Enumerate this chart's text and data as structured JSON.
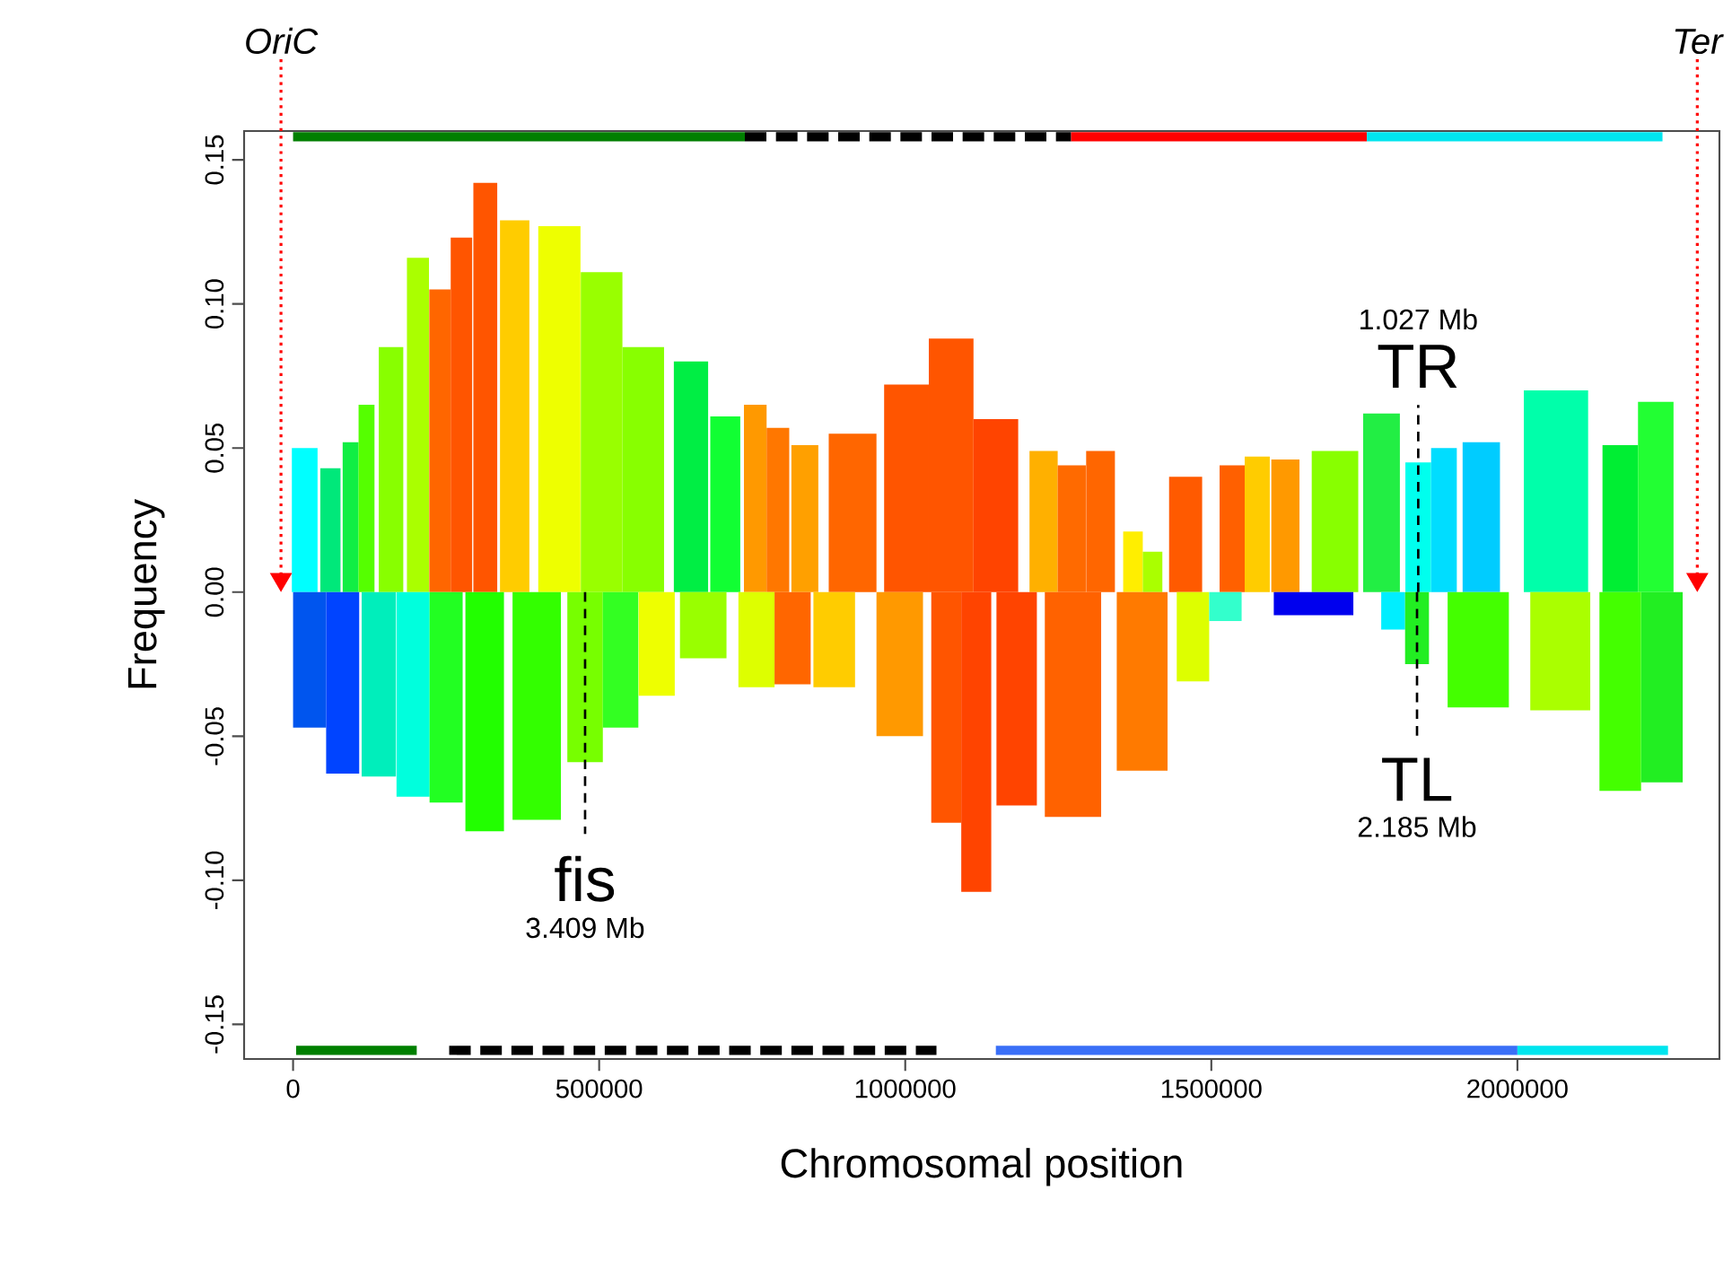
{
  "chart_data": {
    "type": "bar",
    "xlabel": "Chromosomal position",
    "ylabel": "Frequency",
    "xlim": [
      -80000,
      2330000
    ],
    "ylim": [
      -0.162,
      0.16
    ],
    "xticks": [
      0,
      500000,
      1000000,
      1500000,
      2000000
    ],
    "yticks": [
      -0.15,
      {
        "value": -0.1,
        "label": "-0.10"
      },
      -0.05,
      {
        "value": 0,
        "label": "0.00"
      },
      0.05,
      {
        "value": 0.1,
        "label": "0.10"
      },
      0.15
    ],
    "series": [
      {
        "x": [
          19000,
          61000,
          94000,
          120000,
          160000,
          204000,
          240000,
          275000,
          314000,
          362000,
          435000,
          504000,
          572000,
          650000,
          706000,
          755000,
          792000,
          836000,
          914000,
          1002000,
          1075000,
          1148000,
          1226000,
          1272000,
          1319000,
          1372000,
          1404000,
          1458000,
          1534000,
          1575000,
          1621000,
          1702000,
          1778000,
          1838000,
          1880000,
          1941000,
          2063000,
          2168000,
          2226000
        ],
        "values": [
          0.05,
          0.043,
          0.052,
          0.065,
          0.085,
          0.116,
          0.105,
          0.123,
          0.142,
          0.129,
          0.127,
          0.111,
          0.085,
          0.08,
          0.061,
          0.065,
          0.057,
          0.051,
          0.055,
          0.072,
          0.088,
          0.06,
          0.049,
          0.044,
          0.049,
          0.021,
          0.014,
          0.04,
          0.044,
          0.047,
          0.046,
          0.049,
          0.062,
          0.045,
          0.05,
          0.052,
          0.07,
          0.051,
          0.066
        ],
        "colors": [
          "#00ffff",
          "#00e87a",
          "#11ee44",
          "#55ff00",
          "#88ff00",
          "#aaff00",
          "#ff6600",
          "#ff5500",
          "#ff5500",
          "#ffcc00",
          "#eeff00",
          "#99ff00",
          "#88ff00",
          "#00ee44",
          "#11ff33",
          "#ff9900",
          "#ff7700",
          "#ffa000",
          "#ff6600",
          "#ff5500",
          "#ff5500",
          "#ff4400",
          "#ffb000",
          "#ff6a00",
          "#ff6600",
          "#ffee00",
          "#aaff00",
          "#ff5a00",
          "#ff6000",
          "#ffcc00",
          "#ff9900",
          "#88ff00",
          "#22ee44",
          "#00ffee",
          "#00ddff",
          "#00ccff",
          "#00ffaa",
          "#00ee33",
          "#22ff33"
        ]
      },
      {
        "x": [
          27000,
          81000,
          140000,
          196000,
          250000,
          313000,
          398000,
          477000,
          535000,
          594000,
          670000,
          757000,
          816000,
          884000,
          991000,
          1067000,
          1116000,
          1182000,
          1274000,
          1387000,
          1470000,
          1523000,
          1667000,
          1797000,
          1836000,
          1936000,
          2070000,
          2168000,
          2236000
        ],
        "values": [
          -0.047,
          -0.063,
          -0.064,
          -0.071,
          -0.073,
          -0.083,
          -0.079,
          -0.059,
          -0.047,
          -0.036,
          -0.023,
          -0.033,
          -0.032,
          -0.033,
          -0.05,
          -0.08,
          -0.104,
          -0.074,
          -0.078,
          -0.062,
          -0.031,
          -0.01,
          -0.008,
          -0.013,
          -0.025,
          -0.04,
          -0.041,
          -0.069,
          -0.066
        ],
        "colors": [
          "#0055ee",
          "#0044ff",
          "#00eebb",
          "#00ffdd",
          "#22ff22",
          "#22ff00",
          "#33ff00",
          "#77ff00",
          "#33ff22",
          "#eeff00",
          "#99ff00",
          "#ddff00",
          "#ff6600",
          "#ffcc00",
          "#ff9900",
          "#ff5500",
          "#ff4400",
          "#ff4400",
          "#ff6200",
          "#ff7a00",
          "#ddff00",
          "#33ffcc",
          "#0000ee",
          "#00eeff",
          "#22ee22",
          "#44ff00",
          "#aaff00",
          "#44ff00",
          "#22ee22"
        ]
      },
      {
        "type": "line",
        "x": [
          0,
          738000
        ],
        "values": [
          0.158,
          0.158
        ],
        "color": "#007f00"
      },
      {
        "type": "line",
        "x": [
          738000,
          1271000
        ],
        "values": [
          0.158,
          0.158
        ],
        "color": "#000000",
        "line_style": "dashed"
      },
      {
        "type": "line",
        "x": [
          1271000,
          1754000
        ],
        "values": [
          0.158,
          0.158
        ],
        "color": "#ff0000"
      },
      {
        "type": "line",
        "x": [
          1754000,
          2237000
        ],
        "values": [
          0.158,
          0.158
        ],
        "color": "#00e5ee"
      },
      {
        "type": "line",
        "x": [
          5000,
          202000
        ],
        "values": [
          -0.159,
          -0.159
        ],
        "color": "#007f00"
      },
      {
        "type": "line",
        "x": [
          255000,
          1051000
        ],
        "values": [
          -0.159,
          -0.159
        ],
        "color": "#000000",
        "line_style": "dashed"
      },
      {
        "type": "line",
        "x": [
          1148000,
          2000000
        ],
        "values": [
          -0.159,
          -0.159
        ],
        "color": "#3a6ff7"
      },
      {
        "type": "line",
        "x": [
          2000000,
          2246000
        ],
        "values": [
          -0.159,
          -0.159
        ],
        "color": "#00e5ee"
      }
    ],
    "annotations": [
      "OriC",
      "Ter",
      {
        "text": "TR",
        "x": 1838000,
        "y": 0.045
      },
      "1.027 Mb",
      {
        "text": "TL",
        "x": 1836000,
        "y": -0.025
      },
      "2.185 Mb",
      {
        "text": "fis",
        "x": 477000,
        "y": -0.059
      },
      "3.409 Mb"
    ]
  }
}
